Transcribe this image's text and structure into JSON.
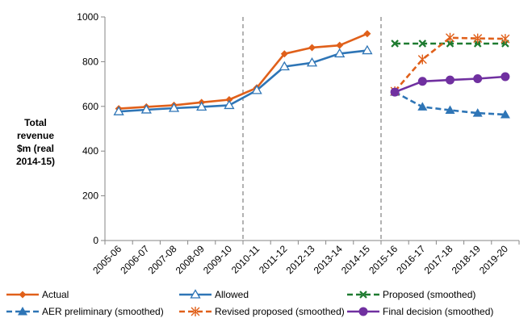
{
  "chart_data": {
    "type": "line",
    "title": "",
    "xlabel": "",
    "ylabel": "Total revenue $m (real 2014-15)",
    "ylabel_lines": [
      "Total",
      "revenue",
      "$m (real",
      "2014-15)"
    ],
    "ylim": [
      0,
      1000
    ],
    "yticks": [
      "0",
      "200",
      "400",
      "600",
      "800",
      "1000"
    ],
    "categories": [
      "2005-06",
      "2006-07",
      "2007-08",
      "2008-09",
      "2009-10",
      "2010-11",
      "2011-12",
      "2012-13",
      "2013-14",
      "2014-15",
      "2015-16",
      "2016-17",
      "2017-18",
      "2018-19",
      "2019-20"
    ],
    "dividers_after": [
      "2009-10",
      "2014-15"
    ],
    "grid": false,
    "legend_position": "bottom",
    "series": [
      {
        "name": "Actual",
        "color": "#E0601A",
        "style": "solid",
        "marker": "diamond",
        "values": [
          590,
          598,
          605,
          618,
          630,
          683,
          835,
          863,
          873,
          925,
          null,
          null,
          null,
          null,
          null
        ]
      },
      {
        "name": "Allowed",
        "color": "#2E75B6",
        "style": "solid",
        "marker": "triangle-open",
        "values": [
          577,
          585,
          592,
          598,
          605,
          672,
          778,
          795,
          836,
          850,
          null,
          null,
          null,
          null,
          null
        ]
      },
      {
        "name": "Proposed (smoothed)",
        "color": "#1E7B30",
        "style": "dashed",
        "marker": "x",
        "values": [
          null,
          null,
          null,
          null,
          null,
          null,
          null,
          null,
          null,
          null,
          881,
          881,
          881,
          881,
          881
        ]
      },
      {
        "name": "AER preliminary (smoothed)",
        "color": "#2E75B6",
        "style": "dashed",
        "marker": "triangle",
        "values": [
          null,
          null,
          null,
          null,
          null,
          null,
          null,
          null,
          null,
          null,
          664,
          598,
          583,
          570,
          563
        ]
      },
      {
        "name": "Revised proposed (smoothed)",
        "color": "#E0601A",
        "style": "dashed",
        "marker": "star",
        "values": [
          null,
          null,
          null,
          null,
          null,
          null,
          null,
          null,
          null,
          null,
          668,
          810,
          907,
          904,
          902
        ]
      },
      {
        "name": "Final decision (smoothed)",
        "color": "#7030A0",
        "style": "solid",
        "marker": "circle",
        "values": [
          null,
          null,
          null,
          null,
          null,
          null,
          null,
          null,
          null,
          null,
          664,
          712,
          718,
          724,
          733
        ]
      }
    ]
  }
}
